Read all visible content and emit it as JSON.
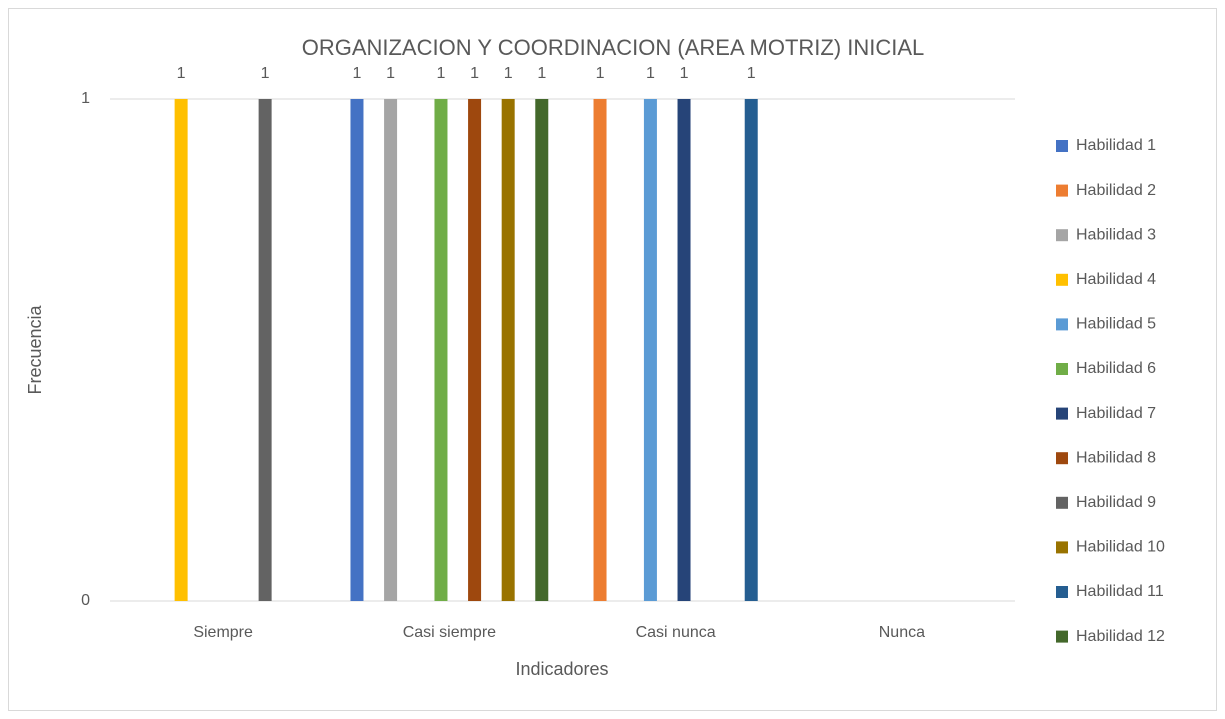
{
  "chart_data": {
    "type": "bar",
    "title": "ORGANIZACION Y COORDINACION (AREA MOTRIZ) INICIAL",
    "x_label": "Indicadores",
    "y_label": "Frecuencia",
    "categories": [
      "Siempre",
      "Casi siempre",
      "Casi nunca",
      "Nunca"
    ],
    "series": [
      {
        "name": "Habilidad 1",
        "color": "#4472c4",
        "values": [
          null,
          1,
          null,
          null
        ]
      },
      {
        "name": "Habilidad 2",
        "color": "#ed7d31",
        "values": [
          null,
          null,
          1,
          null
        ]
      },
      {
        "name": "Habilidad 3",
        "color": "#a5a5a5",
        "values": [
          null,
          1,
          null,
          null
        ]
      },
      {
        "name": "Habilidad 4",
        "color": "#ffc000",
        "values": [
          1,
          null,
          null,
          null
        ]
      },
      {
        "name": "Habilidad 5",
        "color": "#5b9bd5",
        "values": [
          null,
          null,
          1,
          null
        ]
      },
      {
        "name": "Habilidad 6",
        "color": "#70ad47",
        "values": [
          null,
          1,
          null,
          null
        ]
      },
      {
        "name": "Habilidad 7",
        "color": "#264478",
        "values": [
          null,
          null,
          1,
          null
        ]
      },
      {
        "name": "Habilidad 8",
        "color": "#9e480e",
        "values": [
          null,
          1,
          null,
          null
        ]
      },
      {
        "name": "Habilidad 9",
        "color": "#636363",
        "values": [
          1,
          null,
          null,
          null
        ]
      },
      {
        "name": "Habilidad 10",
        "color": "#997300",
        "values": [
          null,
          1,
          null,
          null
        ]
      },
      {
        "name": "Habilidad 11",
        "color": "#255e91",
        "values": [
          null,
          null,
          1,
          null
        ]
      },
      {
        "name": "Habilidad 12",
        "color": "#43682b",
        "values": [
          null,
          1,
          null,
          null
        ]
      }
    ],
    "ylim": [
      0,
      1
    ],
    "yticks": [
      0,
      1
    ],
    "grid": true,
    "legend": "right"
  }
}
